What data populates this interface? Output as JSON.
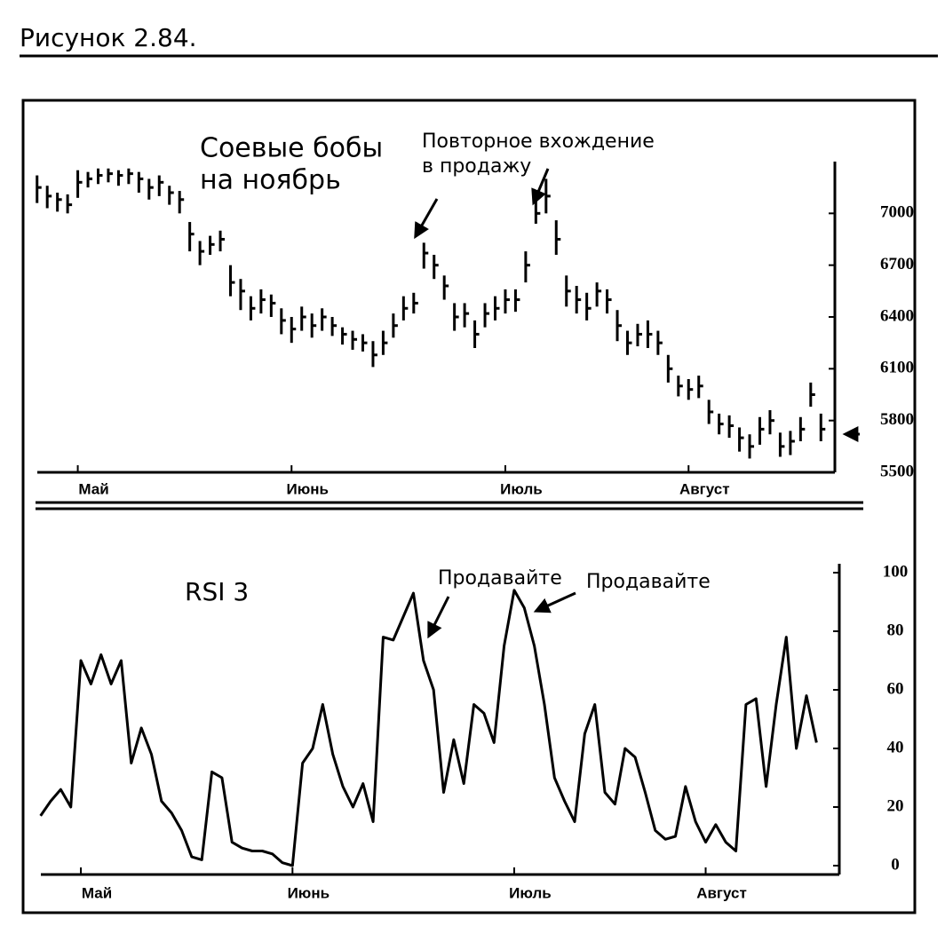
{
  "header": "Рисунок 2.84.",
  "chart_data": [
    {
      "type": "ohlc",
      "title": [
        "Соевые бобы",
        "на ноябрь"
      ],
      "annotations": [
        [
          "Повторное вхождение",
          "в продажу"
        ]
      ],
      "color": "#000000",
      "categories": [
        null,
        null,
        null,
        null,
        "Май",
        null,
        null,
        null,
        null,
        null,
        null,
        null,
        null,
        null,
        null,
        null,
        null,
        null,
        null,
        null,
        null,
        null,
        null,
        null,
        null,
        "Июнь",
        null,
        null,
        null,
        null,
        null,
        null,
        null,
        null,
        null,
        null,
        null,
        null,
        null,
        null,
        null,
        null,
        null,
        null,
        null,
        null,
        "Июль",
        null,
        null,
        null,
        null,
        null,
        null,
        null,
        null,
        null,
        null,
        null,
        null,
        null,
        null,
        null,
        null,
        null,
        "Август",
        null,
        null,
        null,
        null,
        null,
        null,
        null,
        null,
        null,
        null,
        null,
        null,
        null
      ],
      "high": [
        7220,
        7160,
        7120,
        7110,
        7250,
        7240,
        7260,
        7260,
        7250,
        7260,
        7240,
        7200,
        7220,
        7160,
        7130,
        6950,
        6840,
        6870,
        6900,
        6700,
        6620,
        6520,
        6560,
        6530,
        6450,
        6400,
        6460,
        6420,
        6450,
        6400,
        6340,
        6320,
        6300,
        6260,
        6320,
        6420,
        6520,
        6540,
        6830,
        6760,
        6640,
        6480,
        6480,
        6380,
        6480,
        6520,
        6560,
        6560,
        6780,
        7080,
        7200,
        6960,
        6640,
        6580,
        6540,
        6600,
        6560,
        6440,
        6320,
        6360,
        6380,
        6320,
        6180,
        6060,
        6040,
        6060,
        5920,
        5840,
        5830,
        5760,
        5720,
        5820,
        5860,
        5730,
        5740,
        5820,
        6020,
        5840
      ],
      "low": [
        7060,
        7030,
        7010,
        7000,
        7090,
        7150,
        7170,
        7180,
        7160,
        7170,
        7120,
        7080,
        7100,
        7050,
        7000,
        6780,
        6700,
        6760,
        6780,
        6520,
        6440,
        6380,
        6420,
        6400,
        6300,
        6250,
        6320,
        6280,
        6320,
        6290,
        6240,
        6210,
        6200,
        6110,
        6180,
        6280,
        6380,
        6420,
        6680,
        6620,
        6500,
        6320,
        6340,
        6220,
        6340,
        6380,
        6420,
        6430,
        6600,
        6940,
        7000,
        6760,
        6460,
        6420,
        6380,
        6460,
        6420,
        6260,
        6180,
        6230,
        6220,
        6180,
        6020,
        5940,
        5920,
        5930,
        5780,
        5720,
        5700,
        5620,
        5580,
        5660,
        5720,
        5590,
        5600,
        5680,
        5880,
        5680
      ],
      "close": [
        7150,
        7100,
        7080,
        7050,
        7180,
        7200,
        7220,
        7230,
        7220,
        7230,
        7200,
        7150,
        7180,
        7120,
        7080,
        6880,
        6780,
        6820,
        6850,
        6600,
        6550,
        6450,
        6500,
        6480,
        6380,
        6330,
        6400,
        6350,
        6400,
        6350,
        6300,
        6270,
        6250,
        6180,
        6250,
        6350,
        6450,
        6480,
        6770,
        6700,
        6580,
        6400,
        6420,
        6300,
        6420,
        6450,
        6500,
        6500,
        6700,
        7000,
        7100,
        6850,
        6550,
        6500,
        6450,
        6550,
        6500,
        6350,
        6250,
        6300,
        6300,
        6250,
        6100,
        6000,
        5980,
        6000,
        5850,
        5780,
        5770,
        5700,
        5650,
        5750,
        5800,
        5650,
        5680,
        5750,
        5950,
        5750
      ],
      "ylim": [
        5500,
        7300
      ],
      "yticks": [
        5500,
        5800,
        6100,
        6400,
        6700,
        7000
      ]
    },
    {
      "type": "line",
      "title": "RSI 3",
      "annotations": [
        "Продавайте",
        "Продавайте"
      ],
      "color": "#000000",
      "categories": [
        null,
        null,
        null,
        null,
        "Май",
        null,
        null,
        null,
        null,
        null,
        null,
        null,
        null,
        null,
        null,
        null,
        null,
        null,
        null,
        null,
        null,
        null,
        null,
        null,
        null,
        "Июнь",
        null,
        null,
        null,
        null,
        null,
        null,
        null,
        null,
        null,
        null,
        null,
        null,
        null,
        null,
        null,
        null,
        null,
        null,
        null,
        null,
        null,
        "Июль",
        null,
        null,
        null,
        null,
        null,
        null,
        null,
        null,
        null,
        null,
        null,
        null,
        null,
        null,
        null,
        null,
        null,
        null,
        "Август",
        null,
        null,
        null,
        null,
        null,
        null,
        null,
        null,
        null,
        null,
        null
      ],
      "values": [
        17,
        22,
        26,
        20,
        70,
        62,
        72,
        62,
        70,
        35,
        47,
        38,
        22,
        18,
        12,
        3,
        2,
        32,
        30,
        8,
        6,
        5,
        5,
        4,
        1,
        0,
        35,
        40,
        55,
        38,
        27,
        20,
        28,
        15,
        78,
        77,
        85,
        93,
        70,
        60,
        25,
        43,
        28,
        55,
        52,
        42,
        75,
        94,
        88,
        75,
        55,
        30,
        22,
        15,
        45,
        55,
        25,
        21,
        40,
        37,
        25,
        12,
        9,
        10,
        27,
        15,
        8,
        14,
        8,
        5,
        55,
        57,
        27,
        55,
        78,
        40,
        58,
        42
      ],
      "ylim": [
        0,
        100
      ],
      "yticks": [
        0,
        20,
        40,
        60,
        80,
        100
      ]
    }
  ]
}
